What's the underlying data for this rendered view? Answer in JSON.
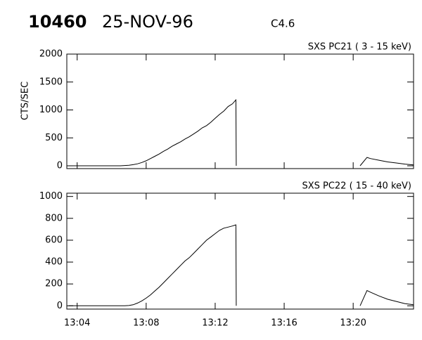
{
  "header": {
    "id": "10460",
    "date": "25-NOV-96",
    "class": "C4.6"
  },
  "chart_data": [
    {
      "type": "line",
      "title": "SXS PC21  (  3 - 15 keV)",
      "ylabel": "CTS/SEC",
      "xlim": [
        3.4,
        23.5
      ],
      "ylim": [
        -50,
        2000
      ],
      "yticks": [
        0,
        500,
        1000,
        1500,
        2000
      ],
      "x": [
        3.5,
        3.75,
        4,
        4.25,
        4.5,
        4.75,
        5,
        5.25,
        5.5,
        5.75,
        6,
        6.25,
        6.5,
        6.75,
        7,
        7.25,
        7.5,
        7.75,
        8,
        8.25,
        8.5,
        8.75,
        9,
        9.25,
        9.5,
        9.75,
        10,
        10.25,
        10.5,
        10.75,
        11,
        11.25,
        11.5,
        11.75,
        12,
        12.25,
        12.5,
        12.75,
        13,
        13.2,
        13.22,
        17,
        20.4,
        20.8,
        21,
        21.5,
        22,
        22.5,
        23,
        23.5
      ],
      "series": [
        {
          "color": "#000000",
          "values": [
            0,
            0,
            0,
            0,
            0,
            0,
            0,
            0,
            0,
            0,
            0,
            0,
            0,
            5,
            10,
            20,
            35,
            60,
            90,
            130,
            170,
            210,
            260,
            300,
            350,
            390,
            430,
            480,
            520,
            570,
            620,
            680,
            720,
            780,
            850,
            920,
            980,
            1060,
            1110,
            1180,
            0,
            null,
            0,
            150,
            130,
            100,
            70,
            50,
            30,
            15
          ]
        }
      ]
    },
    {
      "type": "line",
      "title": "SXS PC22  ( 15 - 40 keV)",
      "xlim": [
        3.4,
        23.5
      ],
      "ylim": [
        -30,
        1030
      ],
      "yticks": [
        0,
        200,
        400,
        600,
        800,
        1000
      ],
      "xticks": [
        {
          "value": 4,
          "label": "13:04"
        },
        {
          "value": 8,
          "label": "13:08"
        },
        {
          "value": 12,
          "label": "13:12"
        },
        {
          "value": 16,
          "label": "13:16"
        },
        {
          "value": 20,
          "label": "13:20"
        }
      ],
      "x": [
        3.5,
        3.75,
        4,
        4.25,
        4.5,
        4.75,
        5,
        5.25,
        5.5,
        5.75,
        6,
        6.25,
        6.5,
        6.75,
        7,
        7.25,
        7.5,
        7.75,
        8,
        8.25,
        8.5,
        8.75,
        9,
        9.25,
        9.5,
        9.75,
        10,
        10.25,
        10.5,
        10.75,
        11,
        11.25,
        11.5,
        11.75,
        12,
        12.25,
        12.5,
        12.75,
        13,
        13.2,
        13.22,
        17,
        20.4,
        20.8,
        21,
        21.5,
        22,
        22.5,
        23,
        23.5
      ],
      "series": [
        {
          "color": "#000000",
          "values": [
            0,
            0,
            0,
            0,
            0,
            0,
            0,
            0,
            0,
            0,
            0,
            0,
            0,
            0,
            3,
            10,
            25,
            45,
            70,
            100,
            135,
            170,
            210,
            250,
            290,
            330,
            370,
            410,
            440,
            480,
            520,
            560,
            600,
            630,
            660,
            690,
            710,
            720,
            730,
            740,
            0,
            null,
            0,
            140,
            125,
            90,
            60,
            40,
            20,
            10
          ]
        }
      ]
    }
  ]
}
